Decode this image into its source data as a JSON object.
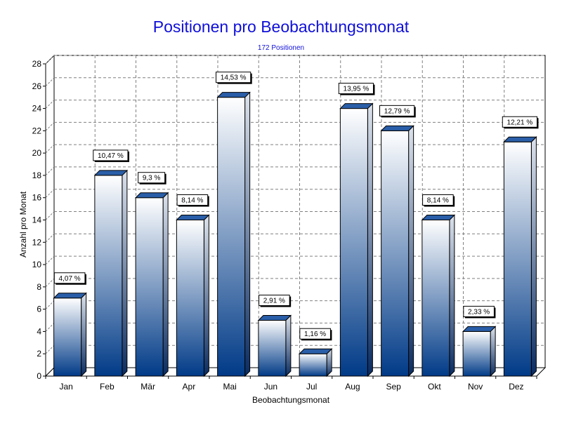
{
  "chart_data": {
    "type": "bar",
    "title": "Positionen pro Beobachtungsmonat",
    "subtitle": "172 Positionen",
    "xlabel": "Beobachtungsmonat",
    "ylabel": "Anzahl pro Monat",
    "ylim": [
      0,
      28
    ],
    "ytick_step": 2,
    "grid": true,
    "categories": [
      "Jan",
      "Feb",
      "Mär",
      "Apr",
      "Mai",
      "Jun",
      "Jul",
      "Aug",
      "Sep",
      "Okt",
      "Nov",
      "Dez"
    ],
    "values": [
      7,
      18,
      16,
      14,
      25,
      5,
      2,
      24,
      22,
      14,
      4,
      21
    ],
    "data_labels": [
      "4,07 %",
      "10,47 %",
      "9,3 %",
      "8,14 %",
      "14,53 %",
      "2,91 %",
      "1,16 %",
      "13,95 %",
      "12,79 %",
      "8,14 %",
      "2,33 %",
      "12,21 %"
    ],
    "colors": {
      "bar_top": "#ffffff",
      "bar_bottom": "#003a87",
      "bar_cap": "#2a5ea8",
      "title": "#1010d8"
    }
  }
}
